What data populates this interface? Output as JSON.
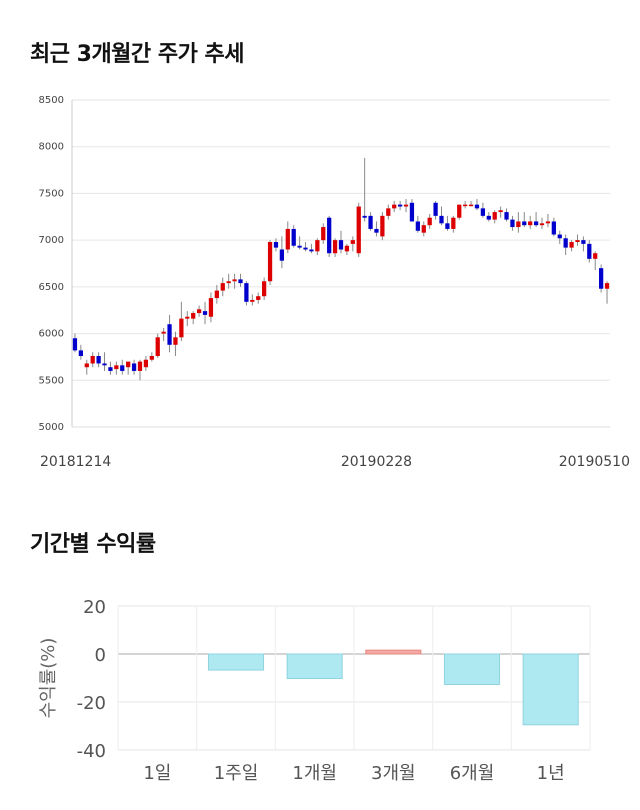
{
  "sections": {
    "price_title": "최근 3개월간 주가 추세",
    "returns_title": "기간별 수익률"
  },
  "chart_data": [
    {
      "type": "candlestick",
      "title": "최근 3개월간 주가 추세",
      "ylim": [
        5000,
        8500
      ],
      "y_ticks": [
        5000,
        5500,
        6000,
        6500,
        7000,
        7500,
        8000,
        8500
      ],
      "x_tick_labels": [
        {
          "label": "20181214",
          "index": 0
        },
        {
          "label": "20190228",
          "index": 51
        },
        {
          "label": "20190510",
          "index": 97
        }
      ],
      "grid": true,
      "colors": {
        "up": "#dd0000",
        "down": "#0000cc",
        "wick": "#888888"
      },
      "candles": [
        [
          5950,
          6000,
          5800,
          5820
        ],
        [
          5820,
          5880,
          5720,
          5760
        ],
        [
          5640,
          5720,
          5560,
          5680
        ],
        [
          5680,
          5800,
          5640,
          5760
        ],
        [
          5760,
          5800,
          5640,
          5680
        ],
        [
          5680,
          5800,
          5600,
          5660
        ],
        [
          5640,
          5700,
          5560,
          5600
        ],
        [
          5620,
          5700,
          5560,
          5660
        ],
        [
          5660,
          5720,
          5560,
          5600
        ],
        [
          5640,
          5700,
          5560,
          5700
        ],
        [
          5680,
          5720,
          5560,
          5600
        ],
        [
          5600,
          5720,
          5500,
          5700
        ],
        [
          5640,
          5760,
          5600,
          5720
        ],
        [
          5720,
          5800,
          5700,
          5760
        ],
        [
          5760,
          6000,
          5740,
          5960
        ],
        [
          6000,
          6060,
          5920,
          6020
        ],
        [
          6100,
          6200,
          5800,
          5880
        ],
        [
          5880,
          6020,
          5760,
          5960
        ],
        [
          5960,
          6340,
          5920,
          6160
        ],
        [
          6160,
          6240,
          6080,
          6180
        ],
        [
          6160,
          6240,
          6100,
          6220
        ],
        [
          6220,
          6300,
          6180,
          6260
        ],
        [
          6240,
          6340,
          6100,
          6200
        ],
        [
          6180,
          6440,
          6120,
          6380
        ],
        [
          6380,
          6520,
          6320,
          6460
        ],
        [
          6460,
          6600,
          6400,
          6540
        ],
        [
          6540,
          6640,
          6480,
          6560
        ],
        [
          6560,
          6640,
          6480,
          6580
        ],
        [
          6580,
          6640,
          6500,
          6540
        ],
        [
          6540,
          6560,
          6300,
          6340
        ],
        [
          6340,
          6420,
          6300,
          6360
        ],
        [
          6360,
          6440,
          6320,
          6400
        ],
        [
          6400,
          6600,
          6360,
          6560
        ],
        [
          6560,
          7000,
          6520,
          6980
        ],
        [
          6980,
          7020,
          6880,
          6920
        ],
        [
          6900,
          7040,
          6700,
          6780
        ],
        [
          6900,
          7200,
          6860,
          7120
        ],
        [
          7120,
          7160,
          6920,
          6940
        ],
        [
          6940,
          7040,
          6900,
          6920
        ],
        [
          6920,
          6980,
          6880,
          6900
        ],
        [
          6900,
          6960,
          6860,
          6880
        ],
        [
          6880,
          7020,
          6840,
          7000
        ],
        [
          7000,
          7180,
          6960,
          7140
        ],
        [
          7240,
          7260,
          6820,
          6860
        ],
        [
          6860,
          7020,
          6820,
          7000
        ],
        [
          7000,
          7100,
          6860,
          6900
        ],
        [
          6880,
          6960,
          6840,
          6940
        ],
        [
          6960,
          7040,
          6880,
          7000
        ],
        [
          6860,
          7400,
          6820,
          7360
        ],
        [
          7260,
          7880,
          7200,
          7240
        ],
        [
          7260,
          7300,
          7100,
          7120
        ],
        [
          7120,
          7200,
          7040,
          7080
        ],
        [
          7040,
          7300,
          7000,
          7260
        ],
        [
          7260,
          7380,
          7220,
          7340
        ],
        [
          7340,
          7420,
          7300,
          7380
        ],
        [
          7380,
          7420,
          7320,
          7360
        ],
        [
          7360,
          7440,
          7300,
          7380
        ],
        [
          7400,
          7440,
          7200,
          7200
        ],
        [
          7200,
          7260,
          7080,
          7100
        ],
        [
          7080,
          7200,
          7040,
          7160
        ],
        [
          7160,
          7280,
          7120,
          7240
        ],
        [
          7400,
          7420,
          7220,
          7260
        ],
        [
          7260,
          7360,
          7160,
          7180
        ],
        [
          7180,
          7260,
          7100,
          7120
        ],
        [
          7120,
          7260,
          7080,
          7240
        ],
        [
          7240,
          7380,
          7220,
          7380
        ],
        [
          7380,
          7420,
          7340,
          7380
        ],
        [
          7380,
          7420,
          7360,
          7380
        ],
        [
          7380,
          7440,
          7320,
          7340
        ],
        [
          7340,
          7400,
          7240,
          7260
        ],
        [
          7260,
          7300,
          7200,
          7220
        ],
        [
          7220,
          7320,
          7180,
          7300
        ],
        [
          7300,
          7360,
          7240,
          7320
        ],
        [
          7300,
          7340,
          7200,
          7220
        ],
        [
          7220,
          7260,
          7100,
          7140
        ],
        [
          7140,
          7300,
          7080,
          7200
        ],
        [
          7200,
          7300,
          7140,
          7160
        ],
        [
          7160,
          7260,
          7120,
          7200
        ],
        [
          7200,
          7300,
          7140,
          7160
        ],
        [
          7160,
          7240,
          7120,
          7180
        ],
        [
          7180,
          7280,
          7140,
          7200
        ],
        [
          7200,
          7240,
          7040,
          7060
        ],
        [
          7060,
          7100,
          6960,
          7020
        ],
        [
          7020,
          7060,
          6840,
          6920
        ],
        [
          6920,
          7000,
          6880,
          6980
        ],
        [
          6980,
          7060,
          6940,
          7000
        ],
        [
          7000,
          7040,
          6880,
          6960
        ],
        [
          6960,
          7000,
          6760,
          6800
        ],
        [
          6800,
          6880,
          6680,
          6860
        ],
        [
          6700,
          6740,
          6440,
          6480
        ],
        [
          6480,
          6560,
          6320,
          6540
        ]
      ]
    },
    {
      "type": "bar",
      "title": "기간별 수익률",
      "ylabel": "수익률(%)",
      "ylim": [
        -40,
        20
      ],
      "y_ticks": [
        20,
        0,
        -20,
        -40
      ],
      "categories": [
        "1일",
        "1주일",
        "1개월",
        "3개월",
        "6개월",
        "1년"
      ],
      "values": [
        0,
        -6.7,
        -10.2,
        1.6,
        -12.7,
        -29.5
      ],
      "grid": true,
      "colors": {
        "positive": "#f4a9a4",
        "negative": "#aee9f2",
        "positive_edge": "#e58880",
        "negative_edge": "#8fd3df"
      }
    }
  ]
}
